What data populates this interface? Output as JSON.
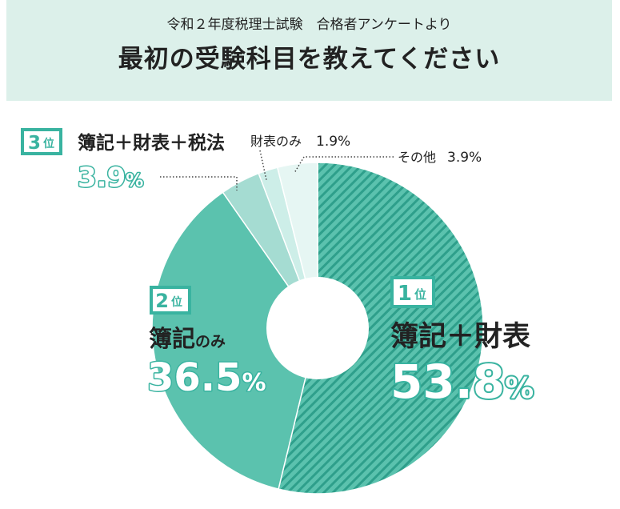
{
  "header": {
    "subtitle": "令和２年度税理士試験　合格者アンケートより",
    "title": "最初の受験科目を教えてください"
  },
  "colors": {
    "header_bg": "#dcf0ea",
    "teal_main": "#5bc2ae",
    "teal_stripe": "#2e9f8b",
    "slice3": "#a5dcd2",
    "slice4": "#cdeee8",
    "slice5": "#e6f6f3",
    "badge": "#39b3a0"
  },
  "chart_data": {
    "type": "pie",
    "donut": true,
    "title": "最初の受験科目を教えてください",
    "subtitle": "令和２年度税理士試験　合格者アンケートより",
    "unit": "%",
    "slices": [
      {
        "label": "簿記＋財表",
        "value": 53.8,
        "rank": "1",
        "rank_suffix": "位",
        "value_text": "53.8",
        "color": "#5bc2ae",
        "pattern": "stripes"
      },
      {
        "label": "簿記のみ",
        "label_main": "簿記",
        "label_small": "のみ",
        "value": 36.5,
        "rank": "2",
        "rank_suffix": "位",
        "value_text": "36.5",
        "color": "#5bc2ae"
      },
      {
        "label": "簿記＋財表＋税法",
        "value": 3.9,
        "rank": "3",
        "rank_suffix": "位",
        "value_text": "3.9",
        "color": "#a5dcd2"
      },
      {
        "label": "財表のみ",
        "value": 1.9,
        "value_text": "1.9%",
        "color": "#cdeee8"
      },
      {
        "label": "その他",
        "value": 3.9,
        "value_text": "3.9%",
        "color": "#e6f6f3"
      }
    ]
  }
}
